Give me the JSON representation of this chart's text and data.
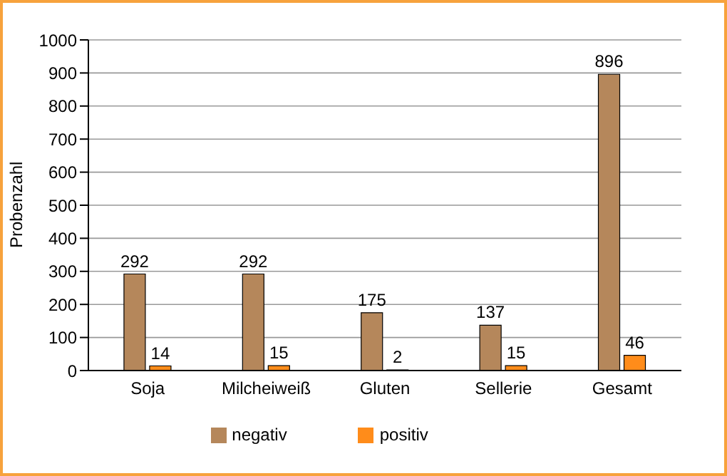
{
  "chart_data": {
    "type": "bar",
    "ylabel": "Probenzahl",
    "categories": [
      "Soja",
      "Milcheiweiß",
      "Gluten",
      "Sellerie",
      "Gesamt"
    ],
    "series": [
      {
        "name": "negativ",
        "color": "#b5875b",
        "values": [
          292,
          292,
          175,
          137,
          896
        ]
      },
      {
        "name": "positiv",
        "color": "#ff8c1a",
        "values": [
          14,
          15,
          2,
          15,
          46
        ]
      }
    ],
    "ylim": [
      0,
      1000
    ],
    "yticks": [
      0,
      100,
      200,
      300,
      400,
      500,
      600,
      700,
      800,
      900,
      1000
    ],
    "grid": "y",
    "legend": "bottom",
    "data_labels": true
  }
}
